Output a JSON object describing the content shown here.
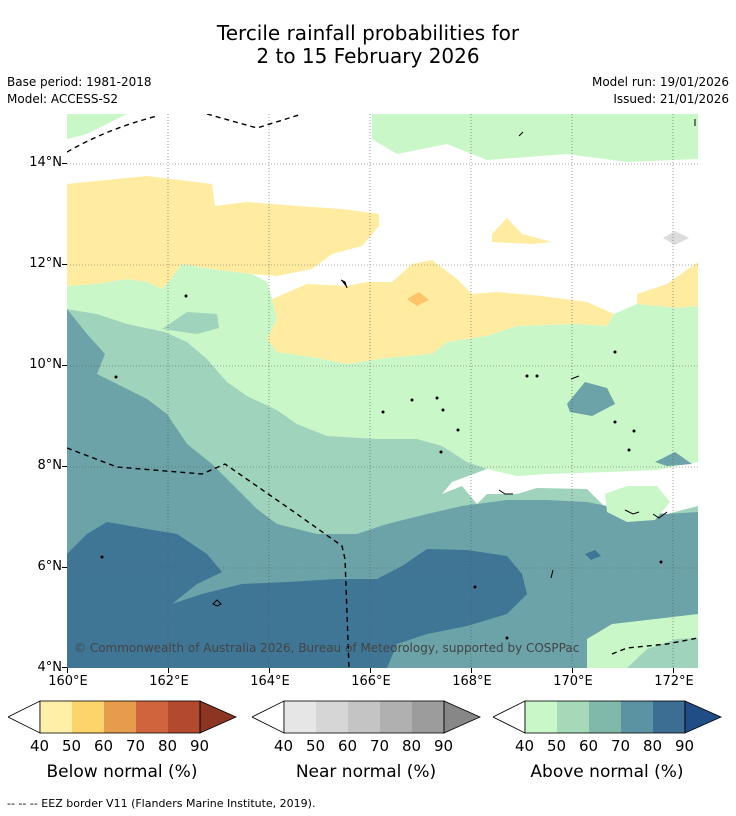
{
  "title_line1": "Tercile rainfall probabilities for",
  "title_line2": "2 to 15 February 2026",
  "base_period": "Base period: 1981-2018",
  "model": "Model: ACCESS-S2",
  "model_run": "Model run: 19/01/2026",
  "issued": "Issued: 21/01/2026",
  "lat_labels": [
    "14°N",
    "12°N",
    "10°N",
    "8°N",
    "6°N",
    "4°N"
  ],
  "lon_labels": [
    "160°E",
    "162°E",
    "164°E",
    "166°E",
    "168°E",
    "170°E",
    "172°E"
  ],
  "copyright": "© Commonwealth of Australia 2026, Bureau of Meteorology, supported by COSPPac",
  "legends": [
    {
      "title": "Below normal (%)",
      "ticks": [
        "40",
        "50",
        "60",
        "70",
        "80",
        "90"
      ],
      "colors": [
        "#fff0a8",
        "#fdd46a",
        "#e69c4c",
        "#d0643c",
        "#b34a2d",
        "#8b3522"
      ]
    },
    {
      "title": "Near normal (%)",
      "ticks": [
        "40",
        "50",
        "60",
        "70",
        "80",
        "90"
      ],
      "colors": [
        "#e6e6e6",
        "#d6d6d6",
        "#c4c4c4",
        "#b0b0b0",
        "#9c9c9c",
        "#878787"
      ]
    },
    {
      "title": "Above normal (%)",
      "ticks": [
        "40",
        "50",
        "60",
        "70",
        "80",
        "90"
      ],
      "colors": [
        "#c9f7c8",
        "#a5d9b8",
        "#80b9a9",
        "#5b93a3",
        "#3c6e94",
        "#1f4e86"
      ]
    }
  ],
  "footer": "--  --  -- EEZ border V11 (Flanders Marine Institute, 2019).",
  "colors": {
    "green": "#c9f7c8",
    "teal1": "#9fd3bb",
    "teal2": "#6ba3a8",
    "blue": "#3f7696",
    "yellow": "#ffeca0",
    "orange": "#fdc46a",
    "grey": "#dcdcdc"
  }
}
